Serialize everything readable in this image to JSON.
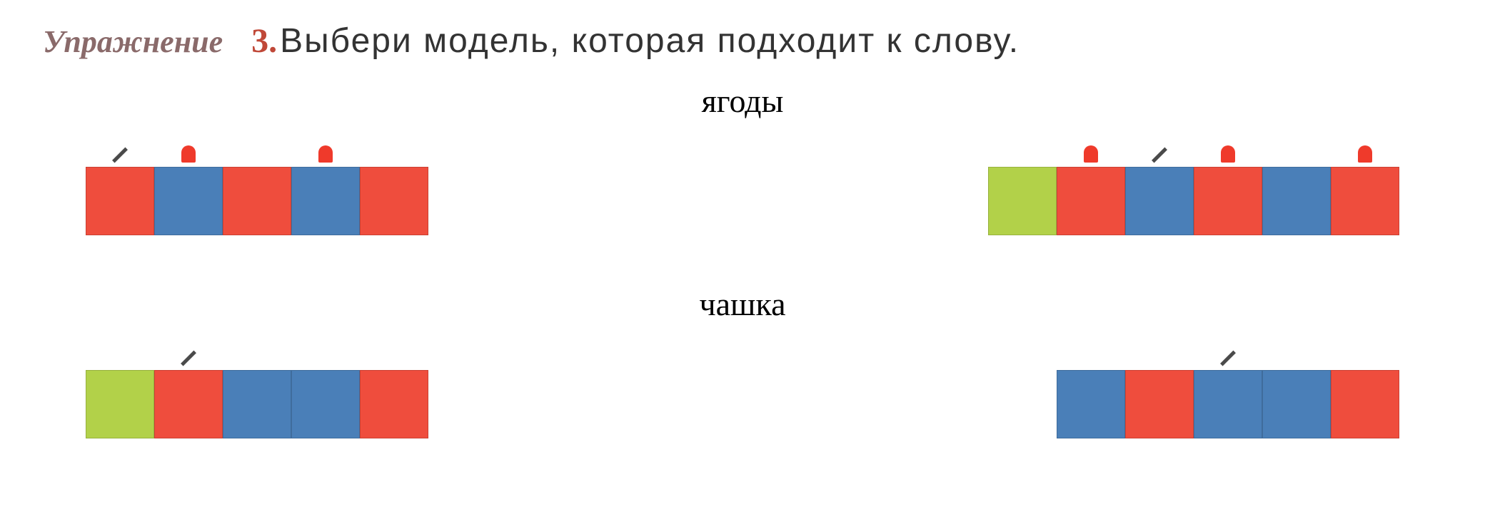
{
  "header": {
    "exercise_label": "Упражнение",
    "exercise_label_color": "#8a6a6a",
    "number": "3.",
    "number_color": "#c04838",
    "instruction": "Выбери модель, которая подходит к слову.",
    "instruction_color": "#333333"
  },
  "colors": {
    "red": "#ef4d3d",
    "blue": "#4a7fb8",
    "green": "#b2d149",
    "bell": "#ef3a2b",
    "stress": "#4a4a4a",
    "background": "#ffffff"
  },
  "box_size": {
    "width": 96,
    "height": 96
  },
  "sections": [
    {
      "word": "ягоды",
      "models": [
        {
          "markers": [
            "stress",
            "bell",
            null,
            "bell",
            null
          ],
          "boxes": [
            "red",
            "blue",
            "red",
            "blue",
            "red"
          ]
        },
        {
          "markers": [
            null,
            "bell",
            "stress",
            "bell",
            null,
            "bell"
          ],
          "boxes": [
            "green",
            "red",
            "blue",
            "red",
            "blue",
            "red"
          ]
        }
      ]
    },
    {
      "word": "чашка",
      "models": [
        {
          "markers": [
            null,
            "stress",
            null,
            null,
            null
          ],
          "boxes": [
            "green",
            "red",
            "blue",
            "blue",
            "red"
          ]
        },
        {
          "markers": [
            null,
            null,
            "stress",
            null,
            null
          ],
          "boxes": [
            "blue",
            "red",
            "blue",
            "blue",
            "red"
          ]
        }
      ]
    }
  ]
}
